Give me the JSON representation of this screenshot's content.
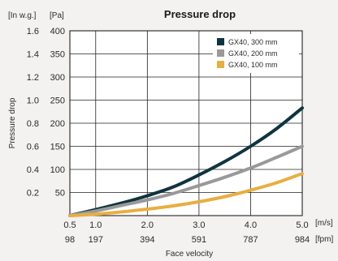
{
  "chart_data": {
    "type": "line",
    "title": "Pressure drop",
    "xlabel": "Face velocity",
    "ylabel": "Pressure drop",
    "x_unit_primary": "[m/s]",
    "x_unit_secondary": "[fpm]",
    "y_unit_primary": "[Pa]",
    "y_unit_secondary": "[In w.g.]",
    "xlim": [
      0.5,
      5.0
    ],
    "ylim": [
      0,
      400
    ],
    "grid": true,
    "legend_position": "top-right",
    "x_ticks": [
      {
        "ms": "0.5",
        "fpm": "98",
        "value": 0.5
      },
      {
        "ms": "1.0",
        "fpm": "197",
        "value": 1.0
      },
      {
        "ms": "2.0",
        "fpm": "394",
        "value": 2.0
      },
      {
        "ms": "3.0",
        "fpm": "591",
        "value": 3.0
      },
      {
        "ms": "4.0",
        "fpm": "787",
        "value": 4.0
      },
      {
        "ms": "5.0",
        "fpm": "984",
        "value": 5.0
      }
    ],
    "y_ticks": [
      {
        "pa": "50",
        "inwg": "0.2",
        "value": 50
      },
      {
        "pa": "100",
        "inwg": "0.4",
        "value": 100
      },
      {
        "pa": "150",
        "inwg": "0.6",
        "value": 150
      },
      {
        "pa": "200",
        "inwg": "0.8",
        "value": 200
      },
      {
        "pa": "250",
        "inwg": "1.0",
        "value": 250
      },
      {
        "pa": "300",
        "inwg": "1.2",
        "value": 300
      },
      {
        "pa": "350",
        "inwg": "1.4",
        "value": 350
      },
      {
        "pa": "400",
        "inwg": "1.6",
        "value": 400
      }
    ],
    "series": [
      {
        "name": "GX40, 300 mm",
        "color": "#0f3440",
        "x": [
          0.5,
          1.0,
          1.5,
          2.0,
          2.5,
          3.0,
          3.5,
          4.0,
          4.5,
          5.0
        ],
        "y": [
          0,
          13,
          27,
          43,
          62,
          88,
          117,
          150,
          188,
          233
        ]
      },
      {
        "name": "GX40, 200 mm",
        "color": "#999999",
        "x": [
          0.5,
          1.0,
          1.5,
          2.0,
          2.5,
          3.0,
          3.5,
          4.0,
          4.5,
          5.0
        ],
        "y": [
          0,
          10,
          22,
          34,
          48,
          65,
          83,
          103,
          126,
          150
        ]
      },
      {
        "name": "GX40, 100 mm",
        "color": "#e8ae40",
        "x": [
          0.5,
          1.0,
          1.5,
          2.0,
          2.5,
          3.0,
          3.5,
          4.0,
          4.5,
          5.0
        ],
        "y": [
          0,
          3,
          8,
          14,
          21,
          30,
          41,
          55,
          71,
          91
        ]
      }
    ]
  }
}
